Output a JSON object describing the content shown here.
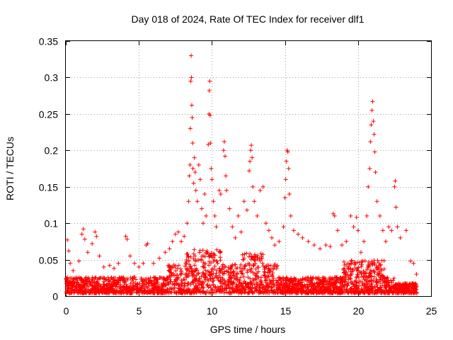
{
  "chart_data": {
    "type": "scatter",
    "title": "Day 018 of 2024, Rate Of TEC Index for receiver dlf1",
    "xlabel": "GPS time / hours",
    "ylabel": "ROTI / TECUs",
    "xlim": [
      0,
      25
    ],
    "ylim": [
      0,
      0.35
    ],
    "xticks": [
      "0",
      "5",
      "10",
      "15",
      "20",
      "25"
    ],
    "yticks": [
      "0",
      "0.05",
      "0.1",
      "0.15",
      "0.2",
      "0.25",
      "0.3",
      "0.35"
    ],
    "grid": true,
    "marker": "+",
    "color": "#ff0000",
    "series": [
      {
        "points": [
          [
            0.1,
            0.077
          ],
          [
            0.2,
            0.062
          ],
          [
            0.3,
            0.045
          ],
          [
            0.5,
            0.035
          ],
          [
            0.9,
            0.048
          ],
          [
            1.1,
            0.085
          ],
          [
            1.2,
            0.092
          ],
          [
            1.3,
            0.078
          ],
          [
            1.5,
            0.06
          ],
          [
            1.8,
            0.072
          ],
          [
            2.0,
            0.088
          ],
          [
            2.1,
            0.082
          ],
          [
            2.3,
            0.055
          ],
          [
            2.6,
            0.04
          ],
          [
            3.0,
            0.042
          ],
          [
            3.3,
            0.038
          ],
          [
            3.6,
            0.045
          ],
          [
            4.1,
            0.082
          ],
          [
            4.2,
            0.078
          ],
          [
            4.4,
            0.055
          ],
          [
            4.7,
            0.045
          ],
          [
            5.0,
            0.04
          ],
          [
            5.3,
            0.045
          ],
          [
            5.5,
            0.07
          ],
          [
            5.6,
            0.072
          ],
          [
            6.0,
            0.045
          ],
          [
            6.4,
            0.052
          ],
          [
            6.8,
            0.06
          ],
          [
            7.1,
            0.065
          ],
          [
            7.3,
            0.075
          ],
          [
            7.5,
            0.085
          ],
          [
            7.7,
            0.088
          ],
          [
            7.9,
            0.075
          ],
          [
            8.1,
            0.082
          ],
          [
            8.3,
            0.1
          ],
          [
            8.4,
            0.13
          ],
          [
            8.45,
            0.165
          ],
          [
            8.5,
            0.18
          ],
          [
            8.52,
            0.23
          ],
          [
            8.55,
            0.295
          ],
          [
            8.58,
            0.33
          ],
          [
            8.6,
            0.3
          ],
          [
            8.62,
            0.262
          ],
          [
            8.65,
            0.245
          ],
          [
            8.68,
            0.21
          ],
          [
            8.7,
            0.175
          ],
          [
            8.75,
            0.155
          ],
          [
            8.8,
            0.19
          ],
          [
            8.85,
            0.17
          ],
          [
            8.9,
            0.145
          ],
          [
            9.0,
            0.13
          ],
          [
            9.1,
            0.18
          ],
          [
            9.2,
            0.16
          ],
          [
            9.3,
            0.12
          ],
          [
            9.4,
            0.1
          ],
          [
            9.5,
            0.14
          ],
          [
            9.6,
            0.11
          ],
          [
            9.75,
            0.208
          ],
          [
            9.8,
            0.25
          ],
          [
            9.82,
            0.282
          ],
          [
            9.85,
            0.295
          ],
          [
            9.88,
            0.248
          ],
          [
            9.9,
            0.21
          ],
          [
            9.95,
            0.175
          ],
          [
            10.0,
            0.16
          ],
          [
            10.1,
            0.13
          ],
          [
            10.2,
            0.11
          ],
          [
            10.3,
            0.095
          ],
          [
            10.5,
            0.145
          ],
          [
            10.6,
            0.14
          ],
          [
            10.8,
            0.2
          ],
          [
            10.85,
            0.212
          ],
          [
            10.9,
            0.192
          ],
          [
            10.95,
            0.165
          ],
          [
            11.0,
            0.145
          ],
          [
            11.2,
            0.12
          ],
          [
            11.4,
            0.095
          ],
          [
            11.6,
            0.08
          ],
          [
            11.8,
            0.11
          ],
          [
            12.0,
            0.088
          ],
          [
            12.2,
            0.13
          ],
          [
            12.4,
            0.118
          ],
          [
            12.55,
            0.172
          ],
          [
            12.6,
            0.185
          ],
          [
            12.65,
            0.2
          ],
          [
            12.7,
            0.207
          ],
          [
            12.75,
            0.19
          ],
          [
            12.8,
            0.15
          ],
          [
            12.9,
            0.13
          ],
          [
            13.1,
            0.11
          ],
          [
            13.3,
            0.145
          ],
          [
            13.5,
            0.15
          ],
          [
            13.7,
            0.1
          ],
          [
            13.9,
            0.09
          ],
          [
            14.1,
            0.08
          ],
          [
            14.3,
            0.07
          ],
          [
            14.6,
            0.075
          ],
          [
            14.9,
            0.095
          ],
          [
            15.0,
            0.135
          ],
          [
            15.05,
            0.16
          ],
          [
            15.1,
            0.185
          ],
          [
            15.15,
            0.2
          ],
          [
            15.2,
            0.198
          ],
          [
            15.25,
            0.175
          ],
          [
            15.3,
            0.14
          ],
          [
            15.4,
            0.11
          ],
          [
            15.6,
            0.09
          ],
          [
            15.9,
            0.085
          ],
          [
            16.2,
            0.08
          ],
          [
            16.6,
            0.075
          ],
          [
            17.0,
            0.07
          ],
          [
            17.4,
            0.065
          ],
          [
            17.8,
            0.07
          ],
          [
            18.1,
            0.068
          ],
          [
            18.3,
            0.113
          ],
          [
            18.4,
            0.11
          ],
          [
            18.6,
            0.09
          ],
          [
            18.9,
            0.07
          ],
          [
            19.2,
            0.075
          ],
          [
            19.5,
            0.11
          ],
          [
            19.7,
            0.095
          ],
          [
            19.9,
            0.108
          ],
          [
            20.0,
            0.09
          ],
          [
            20.2,
            0.06
          ],
          [
            20.4,
            0.075
          ],
          [
            20.6,
            0.11
          ],
          [
            20.7,
            0.15
          ],
          [
            20.8,
            0.175
          ],
          [
            20.85,
            0.212
          ],
          [
            20.9,
            0.235
          ],
          [
            20.95,
            0.255
          ],
          [
            21.0,
            0.267
          ],
          [
            21.05,
            0.24
          ],
          [
            21.1,
            0.222
          ],
          [
            21.15,
            0.198
          ],
          [
            21.2,
            0.17
          ],
          [
            21.3,
            0.13
          ],
          [
            21.5,
            0.11
          ],
          [
            21.7,
            0.09
          ],
          [
            21.9,
            0.075
          ],
          [
            22.1,
            0.095
          ],
          [
            22.3,
            0.09
          ],
          [
            22.5,
            0.15
          ],
          [
            22.55,
            0.158
          ],
          [
            22.6,
            0.122
          ],
          [
            22.7,
            0.095
          ],
          [
            22.9,
            0.08
          ],
          [
            23.3,
            0.09
          ],
          [
            23.6,
            0.048
          ],
          [
            23.8,
            0.045
          ],
          [
            24.0,
            0.03
          ]
        ]
      }
    ]
  }
}
